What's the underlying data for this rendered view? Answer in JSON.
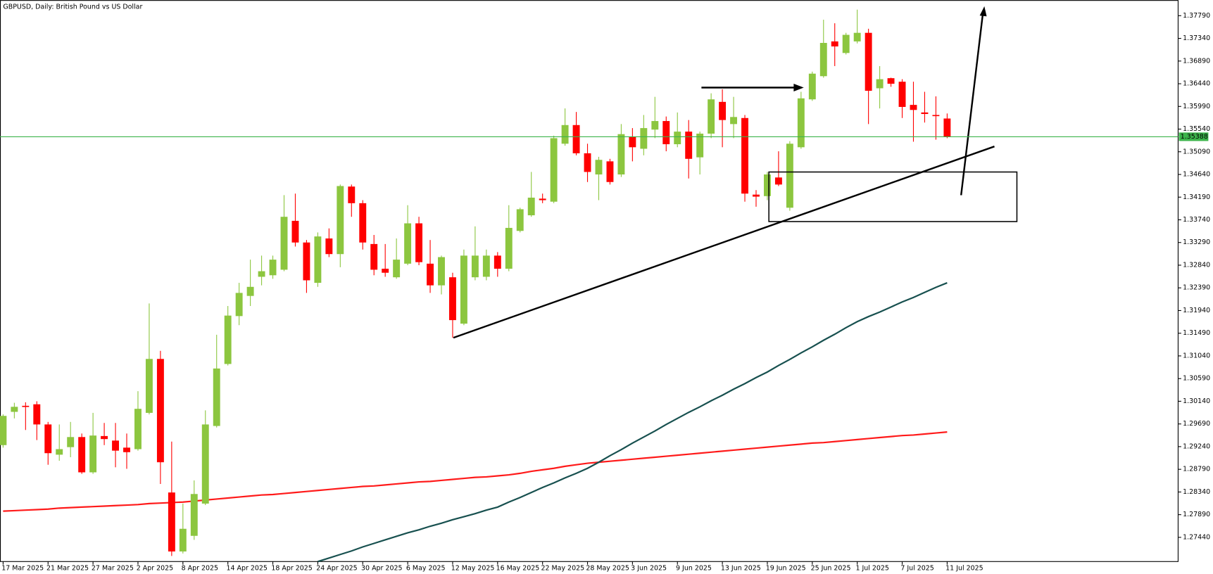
{
  "chart_data": {
    "type": "candlestick",
    "title": "GBPUSD, Daily:  British Pound vs US Dollar",
    "categories": [
      "17 Mar 2025",
      null,
      null,
      null,
      "21 Mar 2025",
      null,
      null,
      null,
      "27 Mar 2025",
      null,
      null,
      null,
      "2 Apr 2025",
      null,
      null,
      null,
      "8 Apr 2025",
      null,
      null,
      null,
      "14 Apr 2025",
      null,
      null,
      null,
      "18 Apr 2025",
      null,
      null,
      null,
      "24 Apr 2025",
      null,
      null,
      null,
      "30 Apr 2025",
      null,
      null,
      null,
      "6 May 2025",
      null,
      null,
      null,
      "12 May 2025",
      null,
      null,
      null,
      "16 May 2025",
      null,
      null,
      null,
      "22 May 2025",
      null,
      null,
      null,
      "28 May 2025",
      null,
      null,
      null,
      "3 Jun 2025",
      null,
      null,
      null,
      "9 Jun 2025",
      null,
      null,
      null,
      "13 Jun 2025",
      null,
      null,
      null,
      "19 Jun 2025",
      null,
      null,
      null,
      "25 Jun 2025",
      null,
      null,
      null,
      "1 Jul 2025",
      null,
      null,
      null,
      "7 Jul 2025",
      null,
      null,
      null,
      "11 Jul 2025"
    ],
    "open": [
      1.2927,
      1.2993,
      1.3005,
      1.3008,
      1.2968,
      1.2908,
      1.2923,
      1.2943,
      1.2873,
      1.2945,
      1.2936,
      1.2922,
      1.2919,
      1.2991,
      1.3098,
      1.2833,
      1.2716,
      1.2747,
      1.2811,
      1.2965,
      1.3088,
      1.3183,
      1.3223,
      1.3261,
      1.3264,
      1.3275,
      1.3372,
      1.3329,
      1.3249,
      1.3337,
      1.3306,
      1.344,
      1.3407,
      1.3326,
      1.3277,
      1.326,
      1.3287,
      1.3367,
      1.3287,
      1.3244,
      1.326,
      1.3168,
      1.326,
      1.3261,
      1.3303,
      1.3277,
      1.3352,
      1.3383,
      1.3416,
      1.341,
      1.3525,
      1.3562,
      1.3506,
      1.3464,
      1.349,
      1.3464,
      1.3538,
      1.3515,
      1.3553,
      1.357,
      1.3524,
      1.3549,
      1.3498,
      1.3545,
      1.3608,
      1.3564,
      1.3576,
      1.3424,
      1.3421,
      1.3458,
      1.3398,
      1.3518,
      1.3613,
      1.3659,
      1.3728,
      1.3705,
      1.3728,
      1.3745,
      1.3635,
      1.3655,
      1.3648,
      1.3602,
      1.3587,
      1.3582,
      1.3575
    ],
    "high": [
      1.2988,
      1.3011,
      1.3012,
      1.3014,
      1.2973,
      1.2968,
      1.2973,
      1.295,
      1.2991,
      1.2971,
      1.2971,
      1.295,
      1.3034,
      1.3208,
      1.3114,
      1.2934,
      1.2811,
      1.2857,
      1.2996,
      1.3146,
      1.3203,
      1.3249,
      1.3295,
      1.3303,
      1.3303,
      1.3423,
      1.3426,
      1.3334,
      1.3349,
      1.3357,
      1.3444,
      1.3444,
      1.3413,
      1.3344,
      1.3326,
      1.3337,
      1.3403,
      1.338,
      1.3334,
      1.3303,
      1.3269,
      1.3315,
      1.3361,
      1.3315,
      1.331,
      1.3403,
      1.3398,
      1.3469,
      1.3426,
      1.3541,
      1.3595,
      1.3588,
      1.3525,
      1.3499,
      1.3495,
      1.3564,
      1.3556,
      1.3582,
      1.3618,
      1.3579,
      1.3587,
      1.3572,
      1.3549,
      1.3625,
      1.3633,
      1.3618,
      1.3582,
      1.3433,
      1.3469,
      1.351,
      1.353,
      1.3628,
      1.3668,
      1.3771,
      1.3764,
      1.3745,
      1.3791,
      1.3753,
      1.3679,
      1.3656,
      1.3653,
      1.3648,
      1.3628,
      1.3619,
      1.3585
    ],
    "low": [
      1.2922,
      1.298,
      1.2957,
      1.2937,
      1.2888,
      1.2896,
      1.2903,
      1.287,
      1.287,
      1.2927,
      1.2883,
      1.288,
      1.2916,
      1.2988,
      1.285,
      1.2707,
      1.2712,
      1.2739,
      1.2808,
      1.2962,
      1.3085,
      1.3165,
      1.3203,
      1.3244,
      1.3257,
      1.3272,
      1.3321,
      1.3229,
      1.3241,
      1.33,
      1.328,
      1.338,
      1.3315,
      1.3264,
      1.3261,
      1.3257,
      1.3284,
      1.3284,
      1.3229,
      1.3226,
      1.314,
      1.3165,
      1.3254,
      1.3254,
      1.3261,
      1.3272,
      1.3349,
      1.338,
      1.3407,
      1.3407,
      1.3521,
      1.3502,
      1.3449,
      1.3413,
      1.3444,
      1.3459,
      1.349,
      1.3502,
      1.3536,
      1.351,
      1.3518,
      1.3456,
      1.3464,
      1.3536,
      1.3518,
      1.3536,
      1.341,
      1.34,
      1.3413,
      1.3441,
      1.3392,
      1.3515,
      1.361,
      1.3656,
      1.3679,
      1.3702,
      1.3724,
      1.3564,
      1.3595,
      1.3638,
      1.3576,
      1.3529,
      1.3567,
      1.3533,
      1.3536
    ],
    "close": [
      1.2985,
      1.3003,
      1.3003,
      1.2968,
      1.2911,
      1.2919,
      1.2943,
      1.2873,
      1.2946,
      1.2939,
      1.2916,
      1.2913,
      1.2999,
      1.3098,
      1.2893,
      1.2716,
      1.2761,
      1.283,
      1.2968,
      1.3079,
      1.3184,
      1.3229,
      1.3241,
      1.3272,
      1.3295,
      1.338,
      1.3329,
      1.3254,
      1.3341,
      1.3306,
      1.3441,
      1.3407,
      1.3329,
      1.3275,
      1.3269,
      1.3295,
      1.3367,
      1.329,
      1.3244,
      1.33,
      1.3175,
      1.3303,
      1.3303,
      1.3303,
      1.3277,
      1.3358,
      1.3395,
      1.3418,
      1.3413,
      1.3536,
      1.3562,
      1.3506,
      1.3469,
      1.3493,
      1.3449,
      1.3544,
      1.3518,
      1.3556,
      1.357,
      1.3524,
      1.3549,
      1.3495,
      1.3545,
      1.3613,
      1.3572,
      1.3578,
      1.3426,
      1.342,
      1.3464,
      1.3444,
      1.3525,
      1.3615,
      1.3664,
      1.3725,
      1.3718,
      1.3741,
      1.3745,
      1.363,
      1.3653,
      1.3644,
      1.3598,
      1.3592,
      1.3584,
      1.3581,
      1.3539
    ],
    "up_color": "#8cc63f",
    "down_color": "#ff0000",
    "moving_averages": [
      {
        "color": "#ff1a1a",
        "values": [
          1.2796,
          1.2797,
          1.2798,
          1.2799,
          1.28,
          1.2802,
          1.2803,
          1.2804,
          1.2805,
          1.2806,
          1.2807,
          1.2808,
          1.2809,
          1.2811,
          1.2812,
          1.2813,
          1.2814,
          1.2816,
          1.2818,
          1.282,
          1.2822,
          1.2824,
          1.2826,
          1.2828,
          1.2829,
          1.2831,
          1.2833,
          1.2835,
          1.2837,
          1.2839,
          1.2841,
          1.2843,
          1.2845,
          1.2846,
          1.2848,
          1.285,
          1.2852,
          1.2854,
          1.2855,
          1.2857,
          1.2859,
          1.2861,
          1.2863,
          1.2864,
          1.2866,
          1.2868,
          1.2871,
          1.2875,
          1.2878,
          1.2881,
          1.2885,
          1.2888,
          1.2891,
          1.2893,
          1.2895,
          1.2897,
          1.2899,
          1.2901,
          1.2903,
          1.2905,
          1.2907,
          1.2909,
          1.2911,
          1.2913,
          1.2915,
          1.2917,
          1.2919,
          1.2921,
          1.2923,
          1.2925,
          1.2927,
          1.2929,
          1.2931,
          1.2932,
          1.2934,
          1.2936,
          1.2938,
          1.294,
          1.2942,
          1.2944,
          1.2946,
          1.2947,
          1.2949,
          1.2951,
          1.2953
        ]
      },
      {
        "color": "#17504f",
        "values": [
          null,
          null,
          null,
          null,
          null,
          null,
          null,
          null,
          null,
          null,
          null,
          null,
          null,
          null,
          null,
          null,
          null,
          null,
          null,
          null,
          null,
          null,
          null,
          null,
          null,
          null,
          null,
          null,
          1.2696,
          1.2703,
          1.271,
          1.2717,
          1.2725,
          1.2732,
          1.2739,
          1.2746,
          1.2753,
          1.2759,
          1.2766,
          1.2772,
          1.2779,
          1.2785,
          1.2791,
          1.2798,
          1.2804,
          1.2814,
          1.2823,
          1.2833,
          1.2843,
          1.2852,
          1.2862,
          1.2871,
          1.2881,
          1.2893,
          1.2906,
          1.2918,
          1.2931,
          1.2943,
          1.2955,
          1.2968,
          1.298,
          1.2992,
          1.3003,
          1.3015,
          1.3026,
          1.3038,
          1.3049,
          1.3061,
          1.3072,
          1.3085,
          1.3097,
          1.311,
          1.3122,
          1.3135,
          1.3147,
          1.316,
          1.3172,
          1.3182,
          1.3191,
          1.3201,
          1.3211,
          1.322,
          1.323,
          1.324,
          1.3249
        ]
      }
    ],
    "current_price": {
      "value": 1.35388,
      "color": "#3cb44b"
    },
    "ylim": [
      1.2696,
      1.381
    ],
    "yticks": [
      {
        "value": 1.3779,
        "label": "1.37790"
      },
      {
        "value": 1.3734,
        "label": "1.37340"
      },
      {
        "value": 1.3689,
        "label": "1.36890"
      },
      {
        "value": 1.3644,
        "label": "1.36440"
      },
      {
        "value": 1.3599,
        "label": "1.35990"
      },
      {
        "value": 1.3554,
        "label": "1.35540"
      },
      {
        "value": 1.3509,
        "label": "1.35090"
      },
      {
        "value": 1.3464,
        "label": "1.34640"
      },
      {
        "value": 1.3419,
        "label": "1.34190"
      },
      {
        "value": 1.3374,
        "label": "1.33740"
      },
      {
        "value": 1.3329,
        "label": "1.33290"
      },
      {
        "value": 1.3284,
        "label": "1.32840"
      },
      {
        "value": 1.3239,
        "label": "1.32390"
      },
      {
        "value": 1.3194,
        "label": "1.31940"
      },
      {
        "value": 1.3149,
        "label": "1.31490"
      },
      {
        "value": 1.3104,
        "label": "1.31040"
      },
      {
        "value": 1.3059,
        "label": "1.30590"
      },
      {
        "value": 1.3014,
        "label": "1.30140"
      },
      {
        "value": 1.2969,
        "label": "1.29690"
      },
      {
        "value": 1.2924,
        "label": "1.29240"
      },
      {
        "value": 1.2879,
        "label": "1.28790"
      },
      {
        "value": 1.2834,
        "label": "1.28340"
      },
      {
        "value": 1.2789,
        "label": "1.27890"
      },
      {
        "value": 1.2744,
        "label": "1.27440"
      }
    ]
  }
}
